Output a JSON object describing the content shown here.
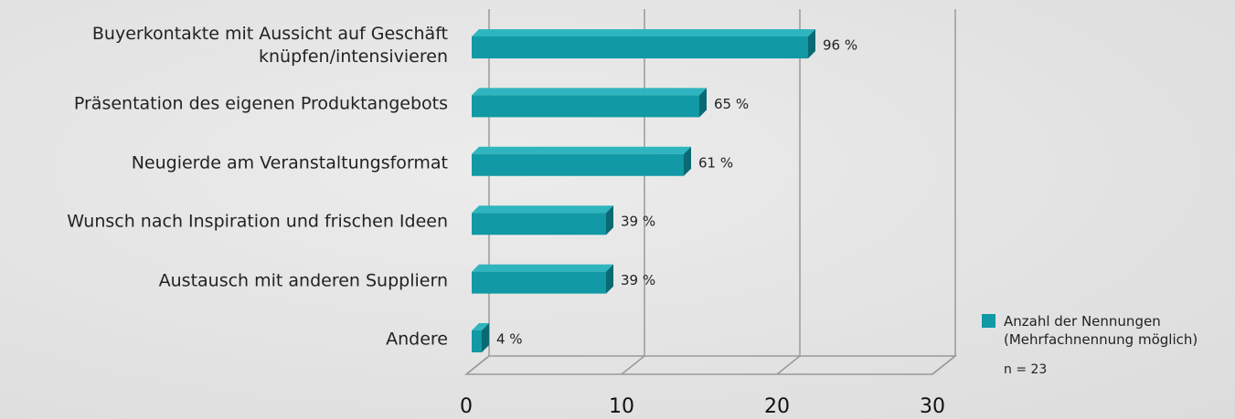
{
  "chart_data": {
    "type": "bar3d_horizontal",
    "categories": [
      "Buyerkontakte mit Aussicht auf Geschäft\nknüpfen/intensivieren",
      "Präsentation des eigenen Produktangebots",
      "Neugierde am Veranstaltungsformat",
      "Wunsch nach Inspiration und frischen Ideen",
      "Austausch mit anderen Suppliern",
      "Andere"
    ],
    "series": [
      {
        "name": "Anzahl der Nennungen (Mehrfachnennung möglich)",
        "color": "#1199a5",
        "values": [
          22,
          15,
          14,
          9,
          9,
          1
        ],
        "value_labels": [
          "96 %",
          "65 %",
          "61 %",
          "39 %",
          "39 %",
          "4 %"
        ]
      }
    ],
    "xlim": [
      0,
      30
    ],
    "xticks": [
      0,
      10,
      20,
      30
    ],
    "grid": true,
    "annotations": [
      "n = 23"
    ],
    "legend": "right"
  }
}
